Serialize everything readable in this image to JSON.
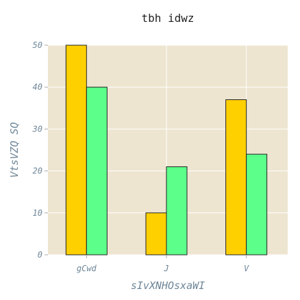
{
  "chart_data": {
    "type": "bar",
    "title": "tbh idwz",
    "xlabel": "sIvXNHOsxaWI",
    "ylabel": "VtsVZQ SQ",
    "categories": [
      "gCwd",
      "J",
      "V"
    ],
    "series": [
      {
        "values": [
          50,
          10,
          37
        ],
        "color": "#ffd000"
      },
      {
        "values": [
          40,
          21,
          24
        ],
        "color": "#5cff8a"
      }
    ],
    "ylim": [
      0,
      50
    ],
    "yticks": [
      0,
      10,
      20,
      30,
      40,
      50
    ],
    "grid": true,
    "background": "#ede5d0",
    "legend": "none"
  }
}
